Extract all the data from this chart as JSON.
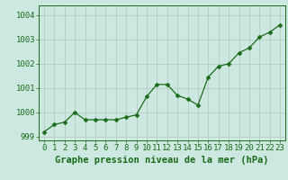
{
  "x": [
    0,
    1,
    2,
    3,
    4,
    5,
    6,
    7,
    8,
    9,
    10,
    11,
    12,
    13,
    14,
    15,
    16,
    17,
    18,
    19,
    20,
    21,
    22,
    23
  ],
  "y": [
    999.2,
    999.5,
    999.6,
    1000.0,
    999.7,
    999.7,
    999.7,
    999.7,
    999.8,
    999.9,
    1000.65,
    1001.15,
    1001.15,
    1000.7,
    1000.55,
    1000.3,
    1001.45,
    1001.9,
    1002.0,
    1002.45,
    1002.65,
    1003.1,
    1003.3,
    1003.6
  ],
  "line_color": "#1a6b1a",
  "marker": "D",
  "marker_size": 2.5,
  "bg_color": "#cce8e0",
  "grid_color": "#b0c8c0",
  "xlabel": "Graphe pression niveau de la mer (hPa)",
  "xlabel_color": "#1a6b1a",
  "tick_color": "#1a6b1a",
  "ylim": [
    998.85,
    1004.4
  ],
  "xlim": [
    -0.5,
    23.5
  ],
  "yticks": [
    999,
    1000,
    1001,
    1002,
    1003,
    1004
  ],
  "fig_bg": "#cce8e0",
  "spine_color": "#1a6b1a",
  "xlabel_fontsize": 7.5,
  "tick_fontsize": 6.5
}
